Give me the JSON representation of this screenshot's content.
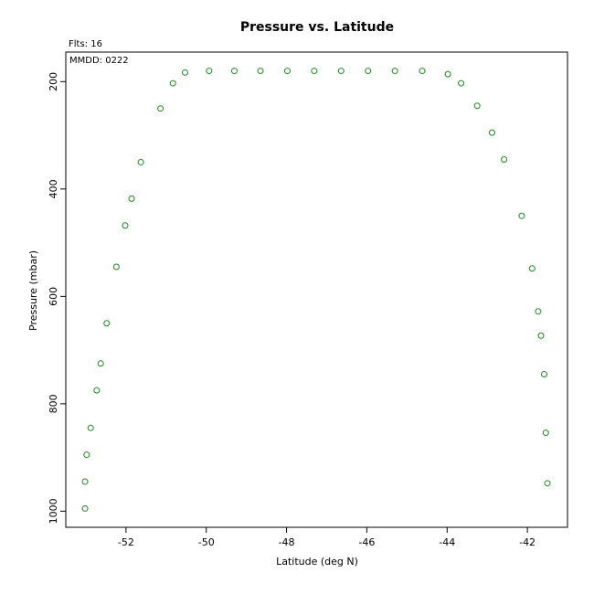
{
  "chart_data": {
    "type": "scatter",
    "title": "Pressure vs. Latitude",
    "xlabel": "Latitude (deg N)",
    "ylabel": "Pressure (mbar)",
    "annotations": {
      "flts": "Flts: 16",
      "mmdd": "MMDD: 0222"
    },
    "xlim": [
      -53.5,
      -41.0
    ],
    "ylim": [
      1030,
      145
    ],
    "y_inverted": true,
    "xticks": [
      -52,
      -50,
      -48,
      -46,
      -44,
      -42
    ],
    "yticks": [
      200,
      400,
      600,
      800,
      1000
    ],
    "grid": false,
    "marker": "open-circle",
    "color": "#1a8a1a",
    "points": [
      [
        -53.02,
        995
      ],
      [
        -53.02,
        945
      ],
      [
        -52.98,
        895
      ],
      [
        -52.88,
        845
      ],
      [
        -52.73,
        775
      ],
      [
        -52.63,
        725
      ],
      [
        -52.48,
        650
      ],
      [
        -52.24,
        545
      ],
      [
        -52.02,
        468
      ],
      [
        -51.86,
        418
      ],
      [
        -51.63,
        350
      ],
      [
        -51.14,
        250
      ],
      [
        -50.83,
        203
      ],
      [
        -50.53,
        183
      ],
      [
        -49.93,
        180
      ],
      [
        -49.3,
        180
      ],
      [
        -48.65,
        180
      ],
      [
        -47.98,
        180
      ],
      [
        -47.31,
        180
      ],
      [
        -46.64,
        180
      ],
      [
        -45.97,
        180
      ],
      [
        -45.3,
        180
      ],
      [
        -44.62,
        180
      ],
      [
        -43.98,
        186
      ],
      [
        -43.65,
        203
      ],
      [
        -43.25,
        245
      ],
      [
        -42.88,
        295
      ],
      [
        -42.58,
        345
      ],
      [
        -42.14,
        450
      ],
      [
        -41.88,
        548
      ],
      [
        -41.73,
        628
      ],
      [
        -41.66,
        673
      ],
      [
        -41.58,
        745
      ],
      [
        -41.54,
        854
      ],
      [
        -41.5,
        948
      ]
    ]
  }
}
